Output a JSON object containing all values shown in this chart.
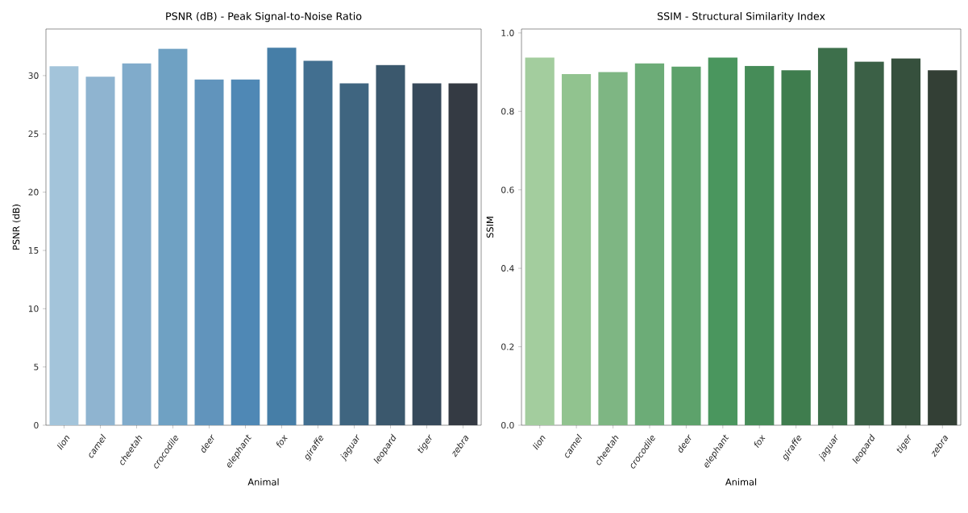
{
  "chart_data": [
    {
      "type": "bar",
      "title": "PSNR (dB) - Peak Signal-to-Noise Ratio",
      "xlabel": "Animal",
      "ylabel": "PSNR (dB)",
      "categories": [
        "lion",
        "camel",
        "cheetah",
        "crocodile",
        "deer",
        "elephant",
        "fox",
        "giraffe",
        "jaguar",
        "leopard",
        "tiger",
        "zebra"
      ],
      "values": [
        30.8,
        29.9,
        31.05,
        32.3,
        29.66,
        29.66,
        32.4,
        31.27,
        29.34,
        30.9,
        29.34,
        29.34
      ],
      "colors": [
        "#a3c4da",
        "#8fb4d0",
        "#80abcb",
        "#6fa1c3",
        "#6194bc",
        "#4f88b5",
        "#467ea7",
        "#426f90",
        "#3f6580",
        "#3b586d",
        "#36495a",
        "#343a43"
      ],
      "ylim": [
        0,
        34
      ],
      "yticks": [
        0,
        5,
        10,
        15,
        20,
        25,
        30
      ]
    },
    {
      "type": "bar",
      "title": "SSIM - Structural Similarity Index",
      "xlabel": "Animal",
      "ylabel": "SSIM",
      "categories": [
        "lion",
        "camel",
        "cheetah",
        "crocodile",
        "deer",
        "elephant",
        "fox",
        "giraffe",
        "jaguar",
        "leopard",
        "tiger",
        "zebra"
      ],
      "values": [
        0.937,
        0.895,
        0.9,
        0.922,
        0.914,
        0.937,
        0.916,
        0.905,
        0.962,
        0.927,
        0.935,
        0.905
      ],
      "colors": [
        "#a3cd9e",
        "#91c38f",
        "#7eb683",
        "#6cac77",
        "#5da26b",
        "#4a965e",
        "#468c58",
        "#3f7d4e",
        "#3d6f4b",
        "#3b6046",
        "#36503d",
        "#333f35"
      ],
      "ylim": [
        0,
        1.01
      ],
      "yticks": [
        {
          "value": 0,
          "label": "0.0"
        },
        {
          "value": 0.2,
          "label": "0.2"
        },
        {
          "value": 0.4,
          "label": "0.4"
        },
        {
          "value": 0.6,
          "label": "0.6"
        },
        {
          "value": 0.8,
          "label": "0.8"
        },
        {
          "value": 1.0,
          "label": "1.0"
        }
      ]
    }
  ]
}
